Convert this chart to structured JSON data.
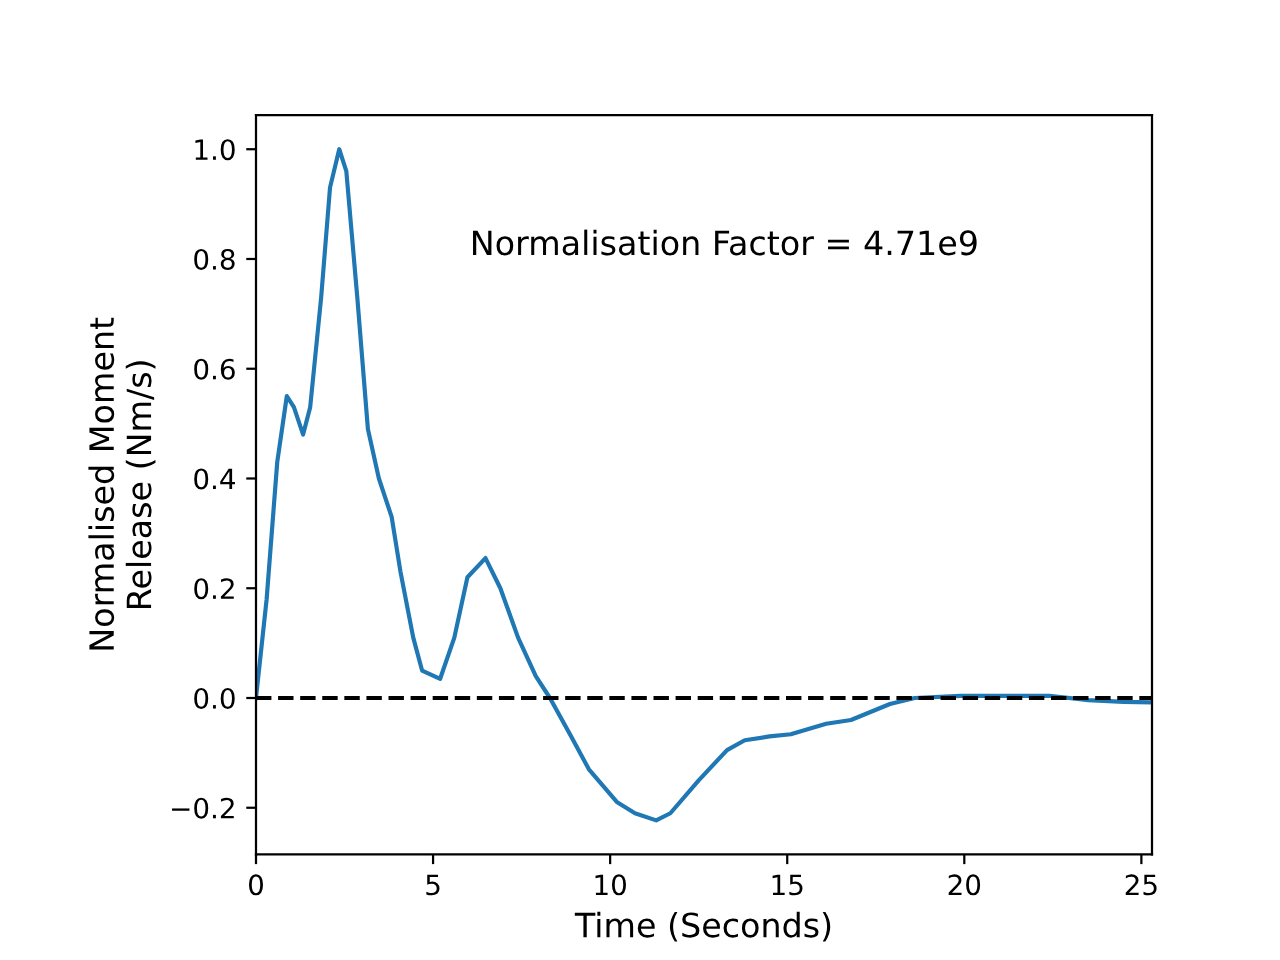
{
  "chart_data": {
    "type": "line",
    "xlabel": "Time (Seconds)",
    "ylabel": "Normalised Moment\nRelease (Nm/s)",
    "annotations": [
      "Normalisation Factor = 4.71e9"
    ],
    "x": [
      0,
      0.3,
      0.6,
      0.87,
      1.07,
      1.33,
      1.53,
      1.84,
      2.09,
      2.35,
      2.55,
      2.86,
      3.16,
      3.47,
      3.83,
      4.08,
      4.44,
      4.69,
      5.2,
      5.6,
      5.97,
      6.48,
      6.9,
      7.4,
      7.9,
      8.3,
      8.9,
      9.4,
      10.2,
      10.7,
      11.3,
      11.7,
      12.5,
      13.3,
      13.8,
      14.5,
      15.1,
      16.1,
      16.8,
      17.9,
      18.6,
      19.9,
      20.9,
      22.4,
      23.5,
      24.5,
      25.3
    ],
    "series": [
      {
        "color": "#1f77b4",
        "values": [
          0,
          0.18,
          0.43,
          0.55,
          0.53,
          0.48,
          0.53,
          0.73,
          0.93,
          1.0,
          0.96,
          0.73,
          0.49,
          0.4,
          0.33,
          0.23,
          0.11,
          0.05,
          0.035,
          0.11,
          0.22,
          0.255,
          0.2,
          0.11,
          0.04,
          0,
          -0.07,
          -0.13,
          -0.19,
          -0.21,
          -0.223,
          -0.21,
          -0.15,
          -0.095,
          -0.077,
          -0.07,
          -0.066,
          -0.047,
          -0.04,
          -0.011,
          0,
          0.004,
          0.004,
          0.004,
          -0.004,
          -0.007,
          -0.008
        ]
      }
    ],
    "xlim": [
      0,
      25.3
    ],
    "ylim": [
      -0.285,
      1.062
    ],
    "xticks": [
      0,
      5,
      10,
      15,
      20,
      25
    ],
    "yticks": [
      {
        "value": -0.2,
        "label": "−0.2"
      },
      {
        "value": 0,
        "label": "0.0"
      },
      {
        "value": 0.2,
        "label": "0.2"
      },
      {
        "value": 0.4,
        "label": "0.4"
      },
      {
        "value": 0.6,
        "label": "0.6"
      },
      {
        "value": 0.8,
        "label": "0.8"
      },
      {
        "value": 1.0,
        "label": "1.0"
      }
    ],
    "ref_lines": [
      {
        "axis": "y",
        "value": 0,
        "color": "#000000",
        "line_style": "dashed"
      }
    ],
    "grid": false,
    "legend": false
  }
}
